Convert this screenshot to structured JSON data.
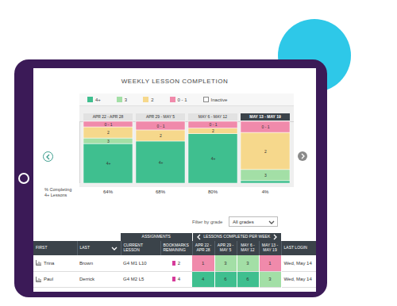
{
  "chart_data": {
    "type": "bar",
    "stacked": true,
    "title": "WEEKLY LESSON COMPLETION",
    "categories": [
      "APR 22 - APR 28",
      "APR 29 - MAY 5",
      "MAY 6 - MAY 12",
      "MAY 13 - MAY 19"
    ],
    "series": [
      {
        "name": "4+",
        "color": "#3fbf8f",
        "values": [
          64,
          68,
          80,
          4
        ],
        "value_labels": [
          "64%",
          "68%",
          "80%",
          "4%"
        ]
      },
      {
        "name": "3",
        "color": "#a3dfa6",
        "values": [
          9,
          0,
          0,
          18
        ]
      },
      {
        "name": "2",
        "color": "#f6d88c",
        "values": [
          18,
          18,
          9,
          60
        ]
      },
      {
        "name": "0 - 1",
        "color": "#f08aab",
        "values": [
          9,
          14,
          11,
          18
        ]
      },
      {
        "name": "Inactive",
        "color": "#ffffff",
        "values": [
          0,
          0,
          0,
          0
        ]
      }
    ],
    "ylim": [
      0,
      100
    ],
    "yticks": [],
    "tick_labels": "x",
    "legend": "top",
    "row_label": "% Completing 4+ Lessons"
  },
  "table": {
    "filter": {
      "label": "Filter by grade",
      "value": "All grades"
    },
    "group_headers": [
      "ASSIGNMENTS",
      "LESSONS COMPLETED PER WEEK"
    ],
    "columns": [
      "FIRST",
      "LAST",
      "CURRENT LESSON",
      "BOOKMARKS REMAINING",
      "APR 22 - APR 28",
      "APR 29 - MAY 5",
      "MAY 6 - MAY 12",
      "MAY 13 - MAY 19",
      "LAST LOGIN"
    ],
    "rows": [
      [
        "Trina",
        "Brown",
        "G4 M1 L10",
        2,
        1,
        3,
        3,
        1,
        "Wed, May 14"
      ],
      [
        "Paul",
        "Derrick",
        "G4 M2 L5",
        4,
        4,
        6,
        6,
        3,
        "Wed, May 14"
      ]
    ]
  }
}
